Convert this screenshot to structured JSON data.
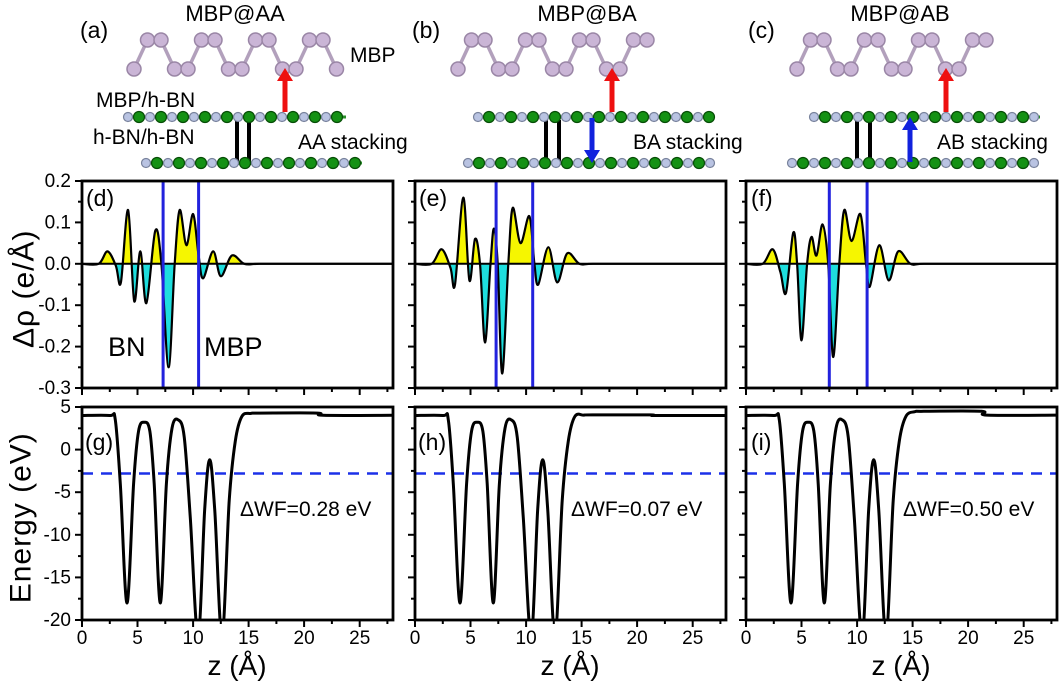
{
  "figure": {
    "top_panels": [
      {
        "letter": "(a)",
        "title": "MBP@AA",
        "stacking": "AA stacking"
      },
      {
        "letter": "(b)",
        "title": "MBP@BA",
        "stacking": "BA stacking"
      },
      {
        "letter": "(c)",
        "title": "MBP@AB",
        "stacking": "AB stacking"
      }
    ],
    "labels": {
      "mbp": "MBP",
      "mbp_hbn": "MBP/h-BN",
      "hbn_hbn": "h-BN/h-BN"
    }
  },
  "colors": {
    "fill_positive": "#f6f600",
    "fill_negative": "#1edede",
    "vline_blue": "#2222dd",
    "dashed_blue": "#1c30e8",
    "red_arrow": "#ee1010",
    "blue_arrow": "#1122dd",
    "atom_green": "#149114",
    "atom_green_edge": "#064d06",
    "atom_light": "#b9c3e2",
    "atom_light_edge": "#78829c",
    "atom_mbp": "#cab5d6",
    "atom_mbp_edge": "#9a86a6",
    "bond_mbp": "#b2a0bc",
    "bond_bn": "#2a8f2a"
  },
  "chart_data": [
    {
      "id": "d",
      "type": "area",
      "panel_label": "(d)",
      "ylabel": "Δρ (e/Å)",
      "region_labels": [
        "BN",
        "MBP"
      ],
      "x_range": [
        0,
        28
      ],
      "y_range": [
        -0.3,
        0.2
      ],
      "x_ticks": {
        "major": [
          0,
          5,
          10,
          15,
          20,
          25
        ],
        "minor": [
          2.5,
          7.5,
          12.5,
          17.5,
          22.5,
          27.5
        ],
        "labels": [
          "0",
          "5",
          "10",
          "15",
          "20",
          "25"
        ]
      },
      "y_ticks": {
        "major": [
          0.2,
          0.1,
          0,
          -0.1,
          -0.2,
          -0.3
        ],
        "minor": [
          0.15,
          0.05,
          -0.05,
          -0.15,
          -0.25
        ],
        "labels": [
          "0.2",
          "0.1",
          "0.0",
          "-0.1",
          "-0.2",
          "-0.3"
        ]
      },
      "vlines": [
        7.3,
        10.5
      ],
      "points": [
        [
          0,
          0
        ],
        [
          1.5,
          0
        ],
        [
          2.3,
          0.03
        ],
        [
          3.05,
          -0.005
        ],
        [
          3.5,
          -0.045
        ],
        [
          4.15,
          0.13
        ],
        [
          4.7,
          -0.09
        ],
        [
          5.25,
          0.03
        ],
        [
          5.8,
          -0.095
        ],
        [
          6.6,
          0.08
        ],
        [
          7.15,
          0
        ],
        [
          7.8,
          -0.25
        ],
        [
          8.35,
          0
        ],
        [
          8.8,
          0.13
        ],
        [
          9.4,
          0.045
        ],
        [
          10.0,
          0.12
        ],
        [
          10.5,
          0.02
        ],
        [
          10.9,
          -0.035
        ],
        [
          11.8,
          0.03
        ],
        [
          12.5,
          -0.03
        ],
        [
          13.5,
          0.02
        ],
        [
          14.6,
          0
        ],
        [
          16,
          0
        ],
        [
          20,
          0
        ],
        [
          24,
          0
        ],
        [
          28,
          0
        ]
      ]
    },
    {
      "id": "e",
      "type": "area",
      "panel_label": "(e)",
      "x_range": [
        0,
        28
      ],
      "y_range": [
        -0.3,
        0.2
      ],
      "x_ticks": {
        "major": [
          0,
          5,
          10,
          15,
          20,
          25
        ],
        "minor": [
          2.5,
          7.5,
          12.5,
          17.5,
          22.5,
          27.5
        ],
        "labels": [
          "0",
          "5",
          "10",
          "15",
          "20",
          "25"
        ]
      },
      "y_ticks": {
        "major": [
          0.2,
          0.1,
          0,
          -0.1,
          -0.2,
          -0.3
        ],
        "minor": [
          0.15,
          0.05,
          -0.05,
          -0.15,
          -0.25
        ],
        "labels": [
          "0.2",
          "0.1",
          "0.0",
          "-0.1",
          "-0.2",
          "-0.3"
        ]
      },
      "vlines": [
        7.3,
        10.6
      ],
      "points": [
        [
          0,
          0
        ],
        [
          1.5,
          0
        ],
        [
          2.4,
          0.035
        ],
        [
          3.2,
          -0.01
        ],
        [
          3.6,
          -0.05
        ],
        [
          4.35,
          0.16
        ],
        [
          4.9,
          -0.04
        ],
        [
          5.4,
          0.06
        ],
        [
          5.85,
          0
        ],
        [
          6.3,
          -0.19
        ],
        [
          6.8,
          0
        ],
        [
          7.1,
          0.085
        ],
        [
          7.45,
          0
        ],
        [
          7.85,
          -0.265
        ],
        [
          8.4,
          0
        ],
        [
          8.8,
          0.135
        ],
        [
          9.5,
          0.05
        ],
        [
          10.3,
          0.115
        ],
        [
          10.75,
          0
        ],
        [
          11.1,
          -0.05
        ],
        [
          12.0,
          0.04
        ],
        [
          12.8,
          -0.045
        ],
        [
          13.7,
          0.025
        ],
        [
          14.8,
          0
        ],
        [
          16,
          0
        ],
        [
          20,
          0
        ],
        [
          24,
          0
        ],
        [
          28,
          0
        ]
      ]
    },
    {
      "id": "f",
      "type": "area",
      "panel_label": "(f)",
      "x_range": [
        0,
        28
      ],
      "y_range": [
        -0.3,
        0.2
      ],
      "x_ticks": {
        "major": [
          0,
          5,
          10,
          15,
          20,
          25
        ],
        "minor": [
          2.5,
          7.5,
          12.5,
          17.5,
          22.5,
          27.5
        ],
        "labels": [
          "0",
          "5",
          "10",
          "15",
          "20",
          "25"
        ]
      },
      "y_ticks": {
        "major": [
          0.2,
          0.1,
          0,
          -0.1,
          -0.2,
          -0.3
        ],
        "minor": [
          0.15,
          0.05,
          -0.05,
          -0.15,
          -0.25
        ],
        "labels": [
          "0.2",
          "0.1",
          "0.0",
          "-0.1",
          "-0.2",
          "-0.3"
        ]
      },
      "vlines": [
        7.5,
        10.9
      ],
      "points": [
        [
          0,
          0
        ],
        [
          1.5,
          0
        ],
        [
          2.4,
          0.035
        ],
        [
          3.1,
          -0.02
        ],
        [
          3.6,
          -0.07
        ],
        [
          4.25,
          0.075
        ],
        [
          4.6,
          0
        ],
        [
          5.0,
          -0.185
        ],
        [
          5.5,
          0
        ],
        [
          5.9,
          0.065
        ],
        [
          6.35,
          0.02
        ],
        [
          6.9,
          0.095
        ],
        [
          7.4,
          0
        ],
        [
          7.85,
          -0.225
        ],
        [
          8.4,
          0
        ],
        [
          8.85,
          0.13
        ],
        [
          9.5,
          0.055
        ],
        [
          10.3,
          0.12
        ],
        [
          10.8,
          0
        ],
        [
          11.15,
          -0.055
        ],
        [
          12.0,
          0.045
        ],
        [
          12.85,
          -0.04
        ],
        [
          13.7,
          0.03
        ],
        [
          14.8,
          0
        ],
        [
          16,
          0
        ],
        [
          20,
          0
        ],
        [
          24,
          0
        ],
        [
          28,
          0
        ]
      ]
    },
    {
      "id": "g",
      "type": "line",
      "panel_label": "(g)",
      "ylabel": "Energy (eV)",
      "xlabel": "z (Å)",
      "annotation": "ΔWF=0.28 eV",
      "fermi_level_eV": -2.8,
      "x_range": [
        0,
        28
      ],
      "y_range": [
        -20,
        5
      ],
      "x_ticks": {
        "major": [
          0,
          5,
          10,
          15,
          20,
          25
        ],
        "minor": [
          2.5,
          7.5,
          12.5,
          17.5,
          22.5,
          27.5
        ],
        "labels": [
          "0",
          "5",
          "10",
          "15",
          "20",
          "25"
        ]
      },
      "y_ticks": {
        "major": [
          5,
          0,
          -5,
          -10,
          -15,
          -20
        ],
        "minor": [
          2.5,
          -2.5,
          -7.5,
          -12.5,
          -17.5
        ],
        "labels": [
          "5",
          "0",
          "-5",
          "-10",
          "-15",
          "-20"
        ]
      },
      "points": [
        [
          0,
          4.0
        ],
        [
          2.5,
          4.0
        ],
        [
          3.0,
          3.5
        ],
        [
          3.45,
          -4
        ],
        [
          4.05,
          -18
        ],
        [
          4.65,
          -4
        ],
        [
          5.1,
          2.2
        ],
        [
          5.6,
          3.2
        ],
        [
          6.1,
          2.2
        ],
        [
          6.5,
          -4
        ],
        [
          7.05,
          -18
        ],
        [
          7.6,
          -4
        ],
        [
          8.1,
          2.5
        ],
        [
          8.65,
          3.5
        ],
        [
          9.2,
          1.5
        ],
        [
          9.75,
          -8
        ],
        [
          10.45,
          -22
        ],
        [
          11.05,
          -7
        ],
        [
          11.5,
          -1.2
        ],
        [
          11.95,
          -7
        ],
        [
          12.6,
          -22
        ],
        [
          13.25,
          -6
        ],
        [
          13.8,
          1.0
        ],
        [
          14.4,
          3.9
        ],
        [
          15.2,
          4.25
        ],
        [
          16,
          4.28
        ],
        [
          21.2,
          4.28
        ],
        [
          21.7,
          4.02
        ],
        [
          28,
          4.02
        ]
      ]
    },
    {
      "id": "h",
      "type": "line",
      "panel_label": "(h)",
      "xlabel": "z (Å)",
      "annotation": "ΔWF=0.07 eV",
      "fermi_level_eV": -2.8,
      "x_range": [
        0,
        28
      ],
      "y_range": [
        -20,
        5
      ],
      "x_ticks": {
        "major": [
          0,
          5,
          10,
          15,
          20,
          25
        ],
        "minor": [
          2.5,
          7.5,
          12.5,
          17.5,
          22.5,
          27.5
        ],
        "labels": [
          "0",
          "5",
          "10",
          "15",
          "20",
          "25"
        ]
      },
      "y_ticks": {
        "major": [
          5,
          0,
          -5,
          -10,
          -15,
          -20
        ],
        "minor": [
          2.5,
          -2.5,
          -7.5,
          -12.5,
          -17.5
        ],
        "labels": [
          "5",
          "0",
          "-5",
          "-10",
          "-15",
          "-20"
        ]
      },
      "points": [
        [
          0,
          4.0
        ],
        [
          2.5,
          4.0
        ],
        [
          3.0,
          3.5
        ],
        [
          3.45,
          -4
        ],
        [
          4.05,
          -18
        ],
        [
          4.65,
          -4
        ],
        [
          5.1,
          2.2
        ],
        [
          5.6,
          3.2
        ],
        [
          6.1,
          2.2
        ],
        [
          6.5,
          -4
        ],
        [
          7.05,
          -18
        ],
        [
          7.6,
          -4
        ],
        [
          8.1,
          2.5
        ],
        [
          8.65,
          3.5
        ],
        [
          9.2,
          1.5
        ],
        [
          9.75,
          -8
        ],
        [
          10.45,
          -22
        ],
        [
          11.05,
          -7
        ],
        [
          11.5,
          -1.2
        ],
        [
          11.95,
          -7
        ],
        [
          12.6,
          -22
        ],
        [
          13.25,
          -6
        ],
        [
          13.8,
          1.0
        ],
        [
          14.4,
          3.9
        ],
        [
          15.2,
          4.05
        ],
        [
          16,
          4.07
        ],
        [
          21.2,
          4.07
        ],
        [
          21.7,
          4.0
        ],
        [
          28,
          4.0
        ]
      ]
    },
    {
      "id": "i",
      "type": "line",
      "panel_label": "(i)",
      "xlabel": "z (Å)",
      "annotation": "ΔWF=0.50 eV",
      "fermi_level_eV": -2.8,
      "x_range": [
        0,
        28
      ],
      "y_range": [
        -20,
        5
      ],
      "x_ticks": {
        "major": [
          0,
          5,
          10,
          15,
          20,
          25
        ],
        "minor": [
          2.5,
          7.5,
          12.5,
          17.5,
          22.5,
          27.5
        ],
        "labels": [
          "0",
          "5",
          "10",
          "15",
          "20",
          "25"
        ]
      },
      "y_ticks": {
        "major": [
          5,
          0,
          -5,
          -10,
          -15,
          -20
        ],
        "minor": [
          2.5,
          -2.5,
          -7.5,
          -12.5,
          -17.5
        ],
        "labels": [
          "5",
          "0",
          "-5",
          "-10",
          "-15",
          "-20"
        ]
      },
      "points": [
        [
          0,
          4.0
        ],
        [
          2.5,
          4.0
        ],
        [
          3.0,
          3.5
        ],
        [
          3.45,
          -4
        ],
        [
          4.05,
          -18
        ],
        [
          4.65,
          -4
        ],
        [
          5.1,
          2.2
        ],
        [
          5.6,
          3.2
        ],
        [
          6.1,
          2.2
        ],
        [
          6.5,
          -4
        ],
        [
          7.05,
          -18
        ],
        [
          7.6,
          -4
        ],
        [
          8.1,
          2.5
        ],
        [
          8.65,
          3.5
        ],
        [
          9.2,
          1.5
        ],
        [
          9.75,
          -8
        ],
        [
          10.45,
          -22
        ],
        [
          11.05,
          -7
        ],
        [
          11.5,
          -1.2
        ],
        [
          11.95,
          -7
        ],
        [
          12.6,
          -22
        ],
        [
          13.25,
          -6
        ],
        [
          13.8,
          1.0
        ],
        [
          14.4,
          3.9
        ],
        [
          15.2,
          4.45
        ],
        [
          16,
          4.5
        ],
        [
          21.2,
          4.5
        ],
        [
          21.7,
          4.05
        ],
        [
          28,
          4.05
        ]
      ]
    }
  ]
}
